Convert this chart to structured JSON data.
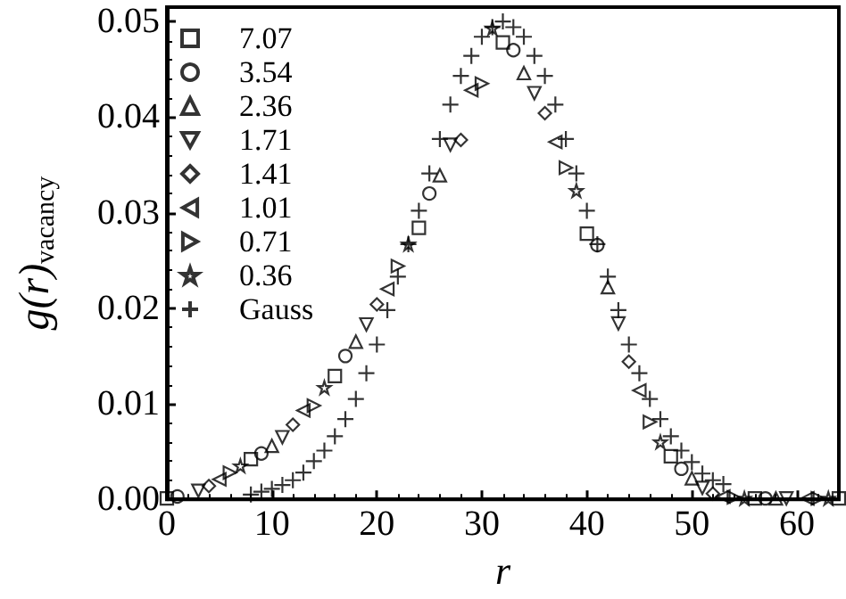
{
  "chart_data": {
    "type": "scatter",
    "xlabel": "r",
    "ylabel": "g(r)$_{vacancy}$",
    "xlim": [
      0,
      64
    ],
    "xticks": [
      0,
      10,
      20,
      30,
      40,
      50,
      60
    ],
    "ylim": [
      0,
      0.0515
    ],
    "yticks": [
      {
        "value": 0,
        "label": "0.00"
      },
      {
        "value": 0.01,
        "label": "0.01"
      },
      {
        "value": 0.02,
        "label": "0.02"
      },
      {
        "value": 0.03,
        "label": "0.03"
      },
      {
        "value": 0.04,
        "label": "0.04"
      },
      {
        "value": 0.05,
        "label": "0.05"
      }
    ],
    "grid": false,
    "legend": "top left",
    "series": [
      {
        "name": "7.07",
        "color": "#000000",
        "marker": "square",
        "x": [
          0,
          8,
          16,
          24,
          32,
          40,
          48,
          56,
          64
        ],
        "values": [
          0.0001,
          0.0042,
          0.0129,
          0.0284,
          0.0478,
          0.0278,
          0.0045,
          0.0001,
          0.0001
        ]
      },
      {
        "name": "3.54",
        "color": "#000000",
        "marker": "circle",
        "x": [
          1,
          9,
          17,
          25,
          33,
          41,
          49,
          57
        ],
        "values": [
          0.0003,
          0.0048,
          0.015,
          0.032,
          0.047,
          0.0266,
          0.0032,
          0.0001
        ]
      },
      {
        "name": "2.36",
        "color": "#000000",
        "marker": "triangle",
        "x": [
          10,
          18,
          26,
          34,
          42,
          50,
          58
        ],
        "values": [
          0.0056,
          0.0165,
          0.0339,
          0.0446,
          0.0222,
          0.0022,
          0.0001
        ]
      },
      {
        "name": "1.71",
        "color": "#000000",
        "marker": "triangle-down",
        "x": [
          3,
          11,
          19,
          27,
          35,
          43,
          51,
          59
        ],
        "values": [
          0.0009,
          0.0065,
          0.0183,
          0.0371,
          0.0425,
          0.0184,
          0.0012,
          0.0001
        ]
      },
      {
        "name": "1.41",
        "color": "#000000",
        "marker": "diamond",
        "x": [
          4,
          12,
          20,
          28,
          36,
          44,
          52
        ],
        "values": [
          0.0014,
          0.0078,
          0.0204,
          0.0376,
          0.0404,
          0.0144,
          0.0006
        ]
      },
      {
        "name": "1.01",
        "color": "#000000",
        "marker": "triangle-left",
        "x": [
          5,
          13,
          21,
          29,
          37,
          45,
          53,
          61
        ],
        "values": [
          0.0021,
          0.0093,
          0.022,
          0.0428,
          0.0374,
          0.0114,
          0.0003,
          0.0001
        ]
      },
      {
        "name": "0.71",
        "color": "#000000",
        "marker": "triangle-right",
        "x": [
          6,
          14,
          22,
          30,
          38,
          46,
          54,
          62
        ],
        "values": [
          0.0028,
          0.0098,
          0.0244,
          0.0435,
          0.0347,
          0.0081,
          0.0002,
          0.0001
        ]
      },
      {
        "name": "0.36",
        "color": "#000000",
        "marker": "star",
        "x": [
          7,
          15,
          23,
          31,
          39,
          47,
          55,
          63
        ],
        "values": [
          0.0035,
          0.0117,
          0.0267,
          0.0493,
          0.0323,
          0.006,
          0.0001,
          0.0001
        ]
      },
      {
        "name": "Gauss",
        "color": "#000000",
        "marker": "cross",
        "x": [
          8,
          9,
          10,
          11,
          12,
          13,
          14,
          15,
          16,
          17,
          18,
          19,
          20,
          21,
          22,
          23,
          24,
          25,
          26,
          27,
          28,
          29,
          30,
          31,
          32,
          33,
          34,
          35,
          36,
          37,
          38,
          39,
          40,
          41,
          42,
          43,
          44,
          45,
          46,
          47,
          48,
          49,
          50,
          51,
          52,
          53
        ],
        "values": [
          0.0005,
          0.0008,
          0.0011,
          0.0015,
          0.002,
          0.0028,
          0.004,
          0.0051,
          0.0066,
          0.0084,
          0.0105,
          0.0132,
          0.0162,
          0.0198,
          0.0233,
          0.0267,
          0.0302,
          0.0341,
          0.0377,
          0.0413,
          0.0443,
          0.0464,
          0.0484,
          0.0494,
          0.05,
          0.0494,
          0.0484,
          0.0464,
          0.0443,
          0.0413,
          0.0377,
          0.0341,
          0.0302,
          0.0267,
          0.0233,
          0.0198,
          0.0162,
          0.0132,
          0.0105,
          0.0084,
          0.0066,
          0.0051,
          0.0039,
          0.0027,
          0.002,
          0.0016
        ]
      }
    ]
  }
}
